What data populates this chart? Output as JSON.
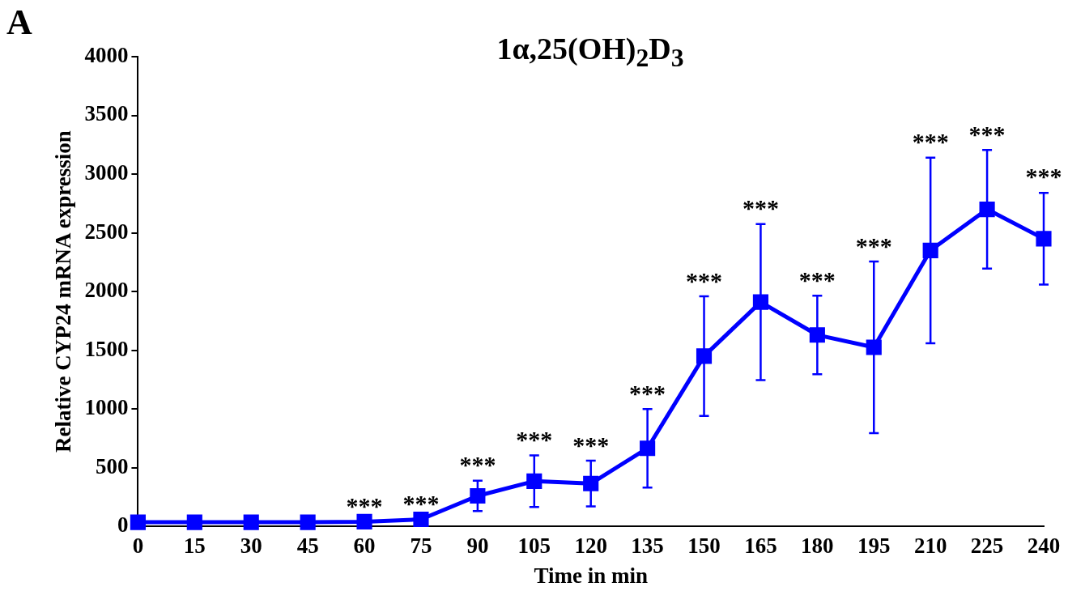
{
  "chart_data": {
    "type": "line",
    "title": "1α,25(OH)$_{2}$D$_{3}$",
    "xlabel": "Time in min",
    "ylabel": "Relative CYP24 mRNA expression",
    "x": [
      0,
      15,
      30,
      45,
      60,
      75,
      90,
      105,
      120,
      135,
      150,
      165,
      180,
      195,
      210,
      225,
      240
    ],
    "series": [
      {
        "color": "#0000ff",
        "values": [
          35,
          35,
          35,
          35,
          40,
          60,
          260,
          385,
          365,
          665,
          1450,
          1910,
          1630,
          1525,
          2350,
          2700,
          2450
        ],
        "errors": [
          null,
          null,
          null,
          null,
          null,
          null,
          130,
          220,
          195,
          335,
          510,
          665,
          335,
          730,
          790,
          505,
          390
        ]
      }
    ],
    "xlim": [
      0,
      240
    ],
    "xticks": [
      0,
      15,
      30,
      45,
      60,
      75,
      90,
      105,
      120,
      135,
      150,
      165,
      180,
      195,
      210,
      225,
      240
    ],
    "ylim": [
      0,
      4000
    ],
    "yticks": [
      0,
      500,
      1000,
      1500,
      2000,
      2500,
      3000,
      3500,
      4000
    ],
    "grid": false,
    "legend": false,
    "marker": "square",
    "line_style": "solid",
    "annotations": [
      "A",
      {
        "text": "***",
        "x": 60,
        "y": 40
      },
      {
        "text": "***",
        "x": 75,
        "y": 60
      },
      {
        "text": "***",
        "x": 90,
        "y": 390
      },
      {
        "text": "***",
        "x": 105,
        "y": 605
      },
      {
        "text": "***",
        "x": 120,
        "y": 560
      },
      {
        "text": "***",
        "x": 135,
        "y": 1000
      },
      {
        "text": "***",
        "x": 150,
        "y": 1960
      },
      {
        "text": "***",
        "x": 165,
        "y": 2575
      },
      {
        "text": "***",
        "x": 180,
        "y": 1965
      },
      {
        "text": "***",
        "x": 195,
        "y": 2255
      },
      {
        "text": "***",
        "x": 210,
        "y": 3140
      },
      {
        "text": "***",
        "x": 225,
        "y": 3205
      },
      {
        "text": "***",
        "x": 240,
        "y": 2845
      }
    ]
  }
}
